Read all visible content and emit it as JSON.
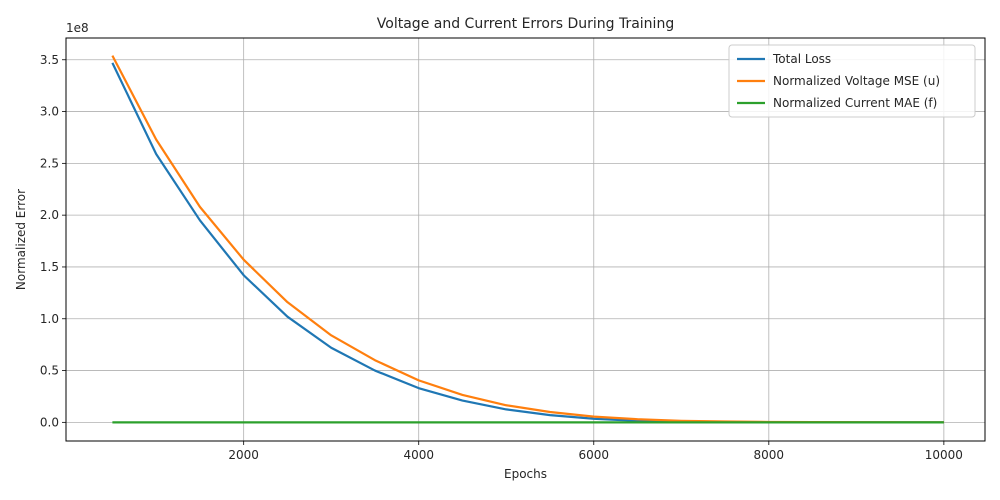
{
  "chart_data": {
    "type": "line",
    "title": "Voltage and Current Errors During Training",
    "xlabel": "Epochs",
    "ylabel": "Normalized Error",
    "offset_text": "1e8",
    "xlim": [
      -30,
      10470
    ],
    "ylim": [
      -18000000,
      371000000
    ],
    "x_ticks": [
      2000,
      4000,
      6000,
      8000,
      10000
    ],
    "y_ticks": [
      0,
      50000000,
      100000000,
      150000000,
      200000000,
      250000000,
      300000000,
      350000000
    ],
    "y_tick_labels": [
      "0.0",
      "0.5",
      "1.0",
      "1.5",
      "2.0",
      "2.5",
      "3.0",
      "3.5"
    ],
    "grid": true,
    "legend_position": "upper right",
    "x": [
      500,
      1000,
      1500,
      2000,
      2500,
      3000,
      3500,
      4000,
      4500,
      5000,
      5500,
      6000,
      6500,
      7000,
      7500,
      8000,
      8500,
      9000,
      9500,
      10000
    ],
    "series": [
      {
        "name": "Total Loss",
        "color": "#1f77b4",
        "values": [
          347000000,
          259000000,
          195000000,
          142000000,
          102000000,
          72000000,
          50000000,
          33000000,
          21000000,
          12500000,
          7000000,
          3500000,
          1500000,
          700000,
          300000,
          100000,
          50000,
          20000,
          10000,
          5000
        ]
      },
      {
        "name": "Normalized Voltage MSE (u)",
        "color": "#ff7f0e",
        "values": [
          354000000,
          273000000,
          208000000,
          157000000,
          116000000,
          84000000,
          60000000,
          40500000,
          26500000,
          16500000,
          10000000,
          5500000,
          3000000,
          1500000,
          800000,
          400000,
          200000,
          100000,
          50000,
          20000
        ]
      },
      {
        "name": "Normalized Current MAE (f)",
        "color": "#2ca02c",
        "values": [
          0,
          0,
          0,
          0,
          0,
          0,
          0,
          0,
          0,
          0,
          0,
          0,
          0,
          0,
          0,
          0,
          0,
          0,
          0,
          0
        ]
      }
    ]
  }
}
